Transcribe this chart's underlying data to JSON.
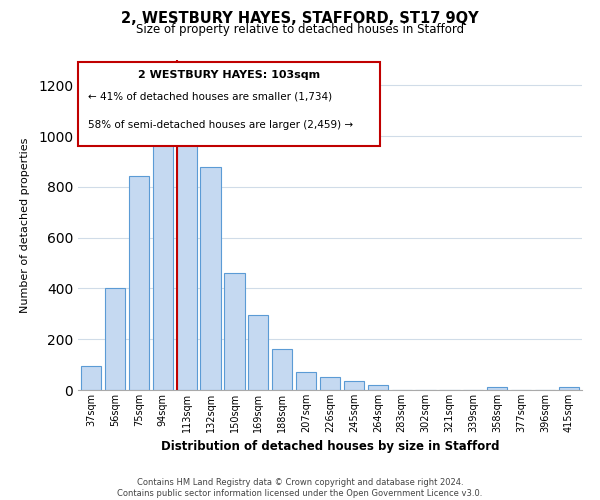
{
  "title": "2, WESTBURY HAYES, STAFFORD, ST17 9QY",
  "subtitle": "Size of property relative to detached houses in Stafford",
  "xlabel": "Distribution of detached houses by size in Stafford",
  "ylabel": "Number of detached properties",
  "bar_labels": [
    "37sqm",
    "56sqm",
    "75sqm",
    "94sqm",
    "113sqm",
    "132sqm",
    "150sqm",
    "169sqm",
    "188sqm",
    "207sqm",
    "226sqm",
    "245sqm",
    "264sqm",
    "283sqm",
    "302sqm",
    "321sqm",
    "339sqm",
    "358sqm",
    "377sqm",
    "396sqm",
    "415sqm"
  ],
  "bar_values": [
    95,
    400,
    845,
    965,
    970,
    880,
    460,
    295,
    160,
    72,
    52,
    35,
    18,
    0,
    0,
    0,
    0,
    10,
    0,
    0,
    10
  ],
  "bar_color": "#c5d9f1",
  "bar_edge_color": "#5b9bd5",
  "highlight_index": 4,
  "highlight_color": "#c00000",
  "annotation_title": "2 WESTBURY HAYES: 103sqm",
  "annotation_line1": "← 41% of detached houses are smaller (1,734)",
  "annotation_line2": "58% of semi-detached houses are larger (2,459) →",
  "ylim": [
    0,
    1300
  ],
  "yticks": [
    0,
    200,
    400,
    600,
    800,
    1000,
    1200
  ],
  "footer_line1": "Contains HM Land Registry data © Crown copyright and database right 2024.",
  "footer_line2": "Contains public sector information licensed under the Open Government Licence v3.0.",
  "bg_color": "#ffffff",
  "grid_color": "#d0dce8"
}
